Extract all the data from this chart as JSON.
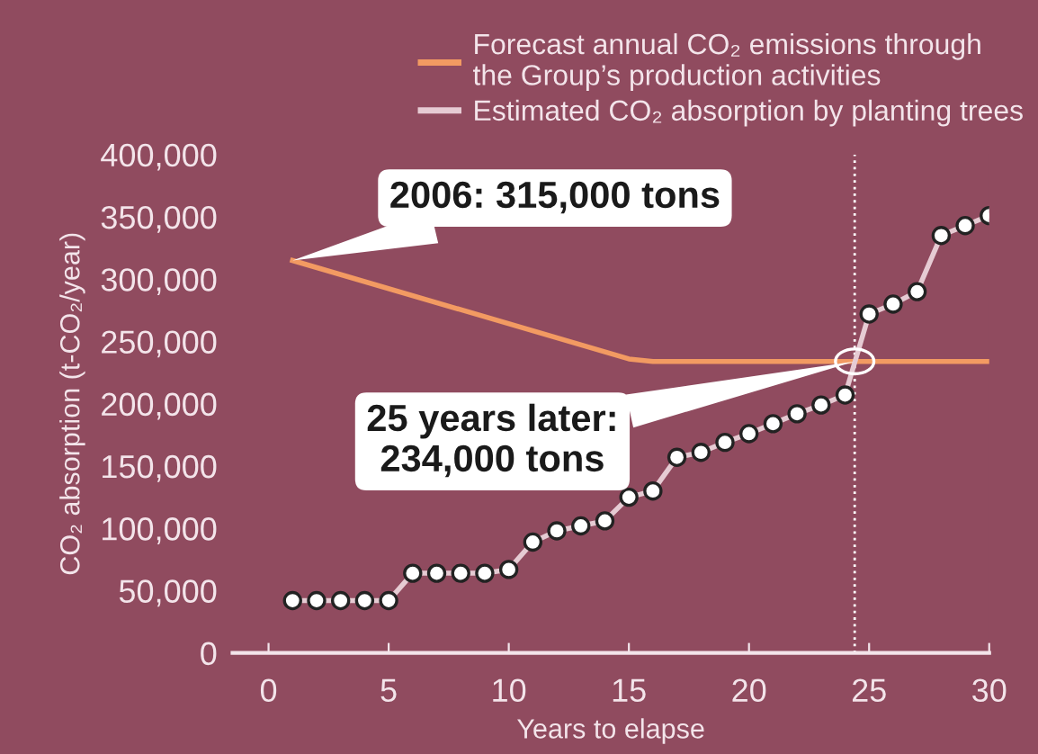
{
  "chart_data": {
    "type": "line",
    "xlabel": "Years to elapse",
    "ylabel": "CO₂ absorption (t-CO₂/year)",
    "xlim": [
      -1.5,
      30
    ],
    "xticks": [
      0,
      5,
      10,
      15,
      20,
      25,
      30
    ],
    "ylim": [
      0,
      400000
    ],
    "yticks": [
      {
        "value": 0,
        "label": "0"
      },
      {
        "value": 50000,
        "label": "50,000"
      },
      {
        "value": 100000,
        "label": "100,000"
      },
      {
        "value": 150000,
        "label": "150,000"
      },
      {
        "value": 200000,
        "label": "200,000"
      },
      {
        "value": 250000,
        "label": "250,000"
      },
      {
        "value": 300000,
        "label": "300,000"
      },
      {
        "value": 350000,
        "label": "350,000"
      },
      {
        "value": 400000,
        "label": "400,000"
      }
    ],
    "grid": false,
    "legend": "top right",
    "series": [
      {
        "name": "Forecast annual CO₂ emissions through\nthe Group’s production activities",
        "color": "#f29a62",
        "marker": "none",
        "x": [
          1,
          15,
          16,
          30
        ],
        "values": [
          315000,
          236000,
          234000,
          234000
        ]
      },
      {
        "name": "Estimated CO₂ absorption by planting trees",
        "color": "#e6cbd3",
        "marker": "circle",
        "x": [
          1,
          2,
          3,
          4,
          5,
          6,
          7,
          8,
          9,
          10,
          11,
          12,
          13,
          14,
          15,
          16,
          17,
          18,
          19,
          20,
          21,
          22,
          23,
          24,
          25,
          26,
          27,
          28,
          29,
          30
        ],
        "values": [
          42000,
          42000,
          42000,
          42000,
          42000,
          64000,
          64000,
          64000,
          64000,
          67000,
          89000,
          98000,
          102000,
          106000,
          125000,
          130000,
          157000,
          161000,
          169000,
          176000,
          184000,
          192000,
          199000,
          207000,
          272000,
          280000,
          290000,
          335000,
          343000,
          351000
        ]
      }
    ],
    "ref_lines": [
      {
        "axis": "x",
        "value": 24.4,
        "color": "#ffffff",
        "line_style": "dotted"
      }
    ],
    "annotations": [
      {
        "text": "2006: 315,000 tons",
        "x": 1,
        "y": 315000
      },
      {
        "text": "25 years later:\n234,000 tons",
        "x": 24.4,
        "y": 234000
      }
    ]
  }
}
